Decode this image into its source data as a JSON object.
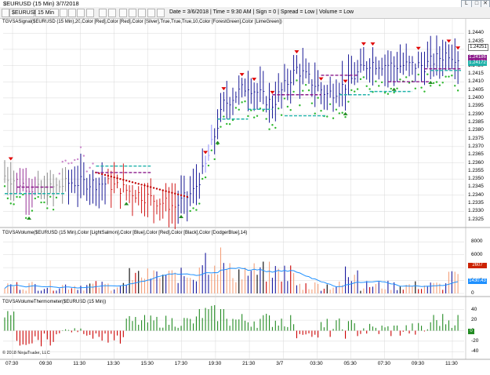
{
  "window": {
    "title": "$EURUSD (15 Min)  3/7/2018",
    "buttons": [
      "L",
      "□",
      "✕"
    ]
  },
  "toolbar": {
    "instrument": "$EURUSD",
    "interval": "15 Min",
    "status": "Date = 3/6/2018 | Time = 9:30 AM | Sign = 0 | Spread = Low | Volume = Low"
  },
  "panels": {
    "price": {
      "label": "TGVSASignal($EURUSD (15 Min),20,Color [Red],Color [Red],Color [Silver],True,True,True,10,Color [ForestGreen],Color [LimeGreen])",
      "ticks": [
        "1.2440",
        "1.2430",
        "1.2420",
        "1.2410",
        "1.2400",
        "1.2390",
        "1.2380",
        "1.2370",
        "1.2360",
        "1.2350",
        "1.2340",
        "1.2330"
      ],
      "extra_ticks": [
        "1.2435",
        "1.2425",
        "1.2415",
        "1.2405",
        "1.2395",
        "1.2385",
        "1.2375",
        "1.2365",
        "1.2355",
        "1.2345",
        "1.2335",
        "1.2325"
      ],
      "badges": [
        {
          "text": "1.24251",
          "color": "#ffffff",
          "text_color": "#000000"
        },
        {
          "text": "1.24186",
          "color": "#8b1a8b",
          "text_color": "#ffffff"
        },
        {
          "text": "1.24172",
          "color": "#20b2aa",
          "text_color": "#ffffff"
        }
      ],
      "min": 1.2322,
      "max": 1.2444
    },
    "volume": {
      "label": "TGVSAVolume($EURUSD (15 Min),Color [LightSalmon],Color [Blue],Color [Red],Color [Black],Color [DodgerBlue],14)",
      "ticks": [
        "8000",
        "6000",
        "4000",
        "2000",
        "0"
      ],
      "badges": [
        {
          "text": "2607",
          "color": "#cc2200",
          "text_color": "#ffffff"
        },
        {
          "text": "1430.43",
          "color": "#1e90ff",
          "text_color": "#ffffff"
        }
      ]
    },
    "thermo": {
      "label": "TGVSAVolumeThermometer($EURUSD (15 Min))",
      "ticks": [
        "40",
        "20",
        "0",
        "-20",
        "-40"
      ],
      "badges": [
        {
          "text": "0",
          "color": "#228b22",
          "text_color": "#ffffff"
        }
      ],
      "copyright": "© 2018 NinjaTrader, LLC"
    }
  },
  "time_axis": [
    "07:30",
    "09:30",
    "11:30",
    "13:30",
    "15:30",
    "17:30",
    "19:30",
    "21:30",
    "3/7",
    "03:30",
    "05:30",
    "07:30",
    "09:30",
    "11:30"
  ],
  "colors": {
    "grid": "#d8d8d8",
    "bar_up": "#00008b",
    "signal_red": "#e00000",
    "signal_green": "#228b22",
    "dot_green": "#2eb82e",
    "dot_red": "#c00000",
    "purple_line": "#8b1a8b",
    "teal_line": "#20b2aa",
    "vol_salmon": "#f4a07a",
    "vol_blue": "#1a1aa0",
    "vol_red": "#cc0000",
    "vol_ma": "#1e90ff",
    "thermo_green": "#228b22",
    "thermo_red": "#cc0000"
  }
}
